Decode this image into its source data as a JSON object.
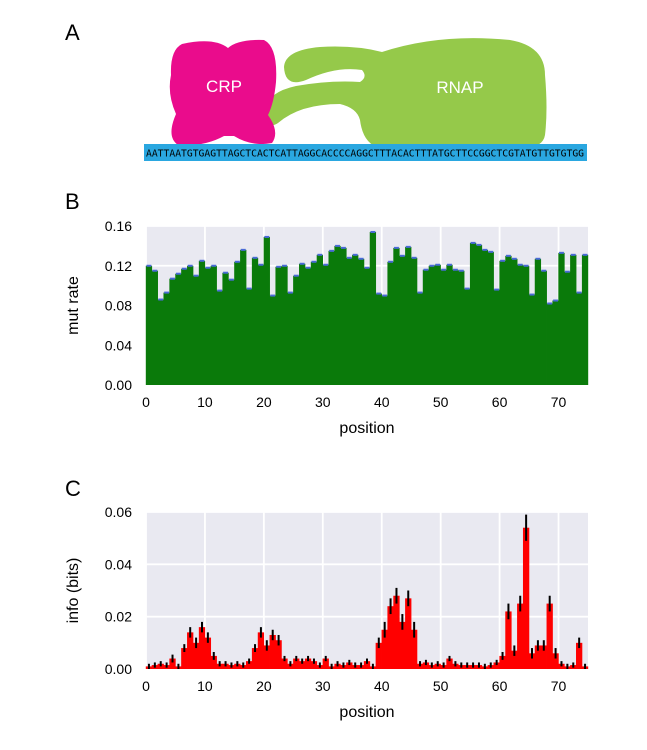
{
  "panels": {
    "a": "A",
    "b": "B",
    "c": "C"
  },
  "diagram": {
    "crp_label": "CRP",
    "rnap_label": "RNAP",
    "sequence": "AATTAATGTGAGTTAGCTCACTCATTAGGCACCCCAGGCTTTACACTTTATGCTTCCGGCTCGTATGTTGTGTGG",
    "colors": {
      "crp": "#ea0c8c",
      "rnap": "#95c94a",
      "dna": "#2aa7e0"
    }
  },
  "chart_data": [
    {
      "type": "bar",
      "id": "mut",
      "xlabel": "position",
      "ylabel": "mut rate",
      "xlim": [
        0,
        75
      ],
      "ylim": [
        0,
        0.16
      ],
      "xticks": [
        0,
        10,
        20,
        30,
        40,
        50,
        60,
        70
      ],
      "yticks": [
        "0.00",
        "0.04",
        "0.08",
        "0.12",
        "0.16"
      ],
      "grid": true,
      "bar_color": "#0a7a0a",
      "errbar_color": "#4a6ad8",
      "x": [
        0,
        1,
        2,
        3,
        4,
        5,
        6,
        7,
        8,
        9,
        10,
        11,
        12,
        13,
        14,
        15,
        16,
        17,
        18,
        19,
        20,
        21,
        22,
        23,
        24,
        25,
        26,
        27,
        28,
        29,
        30,
        31,
        32,
        33,
        34,
        35,
        36,
        37,
        38,
        39,
        40,
        41,
        42,
        43,
        44,
        45,
        46,
        47,
        48,
        49,
        50,
        51,
        52,
        53,
        54,
        55,
        56,
        57,
        58,
        59,
        60,
        61,
        62,
        63,
        64,
        65,
        66,
        67,
        68,
        69,
        70,
        71,
        72,
        73,
        74
      ],
      "values": [
        0.12,
        0.115,
        0.086,
        0.093,
        0.107,
        0.112,
        0.117,
        0.12,
        0.11,
        0.125,
        0.118,
        0.12,
        0.095,
        0.113,
        0.106,
        0.124,
        0.136,
        0.097,
        0.128,
        0.121,
        0.149,
        0.09,
        0.119,
        0.12,
        0.093,
        0.11,
        0.122,
        0.118,
        0.124,
        0.131,
        0.121,
        0.135,
        0.14,
        0.138,
        0.128,
        0.131,
        0.127,
        0.118,
        0.154,
        0.092,
        0.09,
        0.124,
        0.138,
        0.13,
        0.139,
        0.128,
        0.093,
        0.116,
        0.12,
        0.121,
        0.116,
        0.121,
        0.116,
        0.115,
        0.097,
        0.143,
        0.141,
        0.136,
        0.134,
        0.096,
        0.125,
        0.13,
        0.127,
        0.121,
        0.12,
        0.091,
        0.127,
        0.115,
        0.082,
        0.085,
        0.133,
        0.114,
        0.131,
        0.093,
        0.131
      ]
    },
    {
      "type": "bar",
      "id": "info",
      "xlabel": "position",
      "ylabel": "info (bits)",
      "xlim": [
        0,
        75
      ],
      "ylim": [
        0,
        0.06
      ],
      "xticks": [
        0,
        10,
        20,
        30,
        40,
        50,
        60,
        70
      ],
      "yticks": [
        "0.00",
        "0.02",
        "0.04",
        "0.06"
      ],
      "grid": true,
      "bar_color": "#ff0000",
      "errbar_color": "#000000",
      "x": [
        0,
        1,
        2,
        3,
        4,
        5,
        6,
        7,
        8,
        9,
        10,
        11,
        12,
        13,
        14,
        15,
        16,
        17,
        18,
        19,
        20,
        21,
        22,
        23,
        24,
        25,
        26,
        27,
        28,
        29,
        30,
        31,
        32,
        33,
        34,
        35,
        36,
        37,
        38,
        39,
        40,
        41,
        42,
        43,
        44,
        45,
        46,
        47,
        48,
        49,
        50,
        51,
        52,
        53,
        54,
        55,
        56,
        57,
        58,
        59,
        60,
        61,
        62,
        63,
        64,
        65,
        66,
        67,
        68,
        69,
        70,
        71,
        72,
        73,
        74
      ],
      "values": [
        0.001,
        0.0015,
        0.002,
        0.0015,
        0.004,
        0.001,
        0.008,
        0.014,
        0.01,
        0.016,
        0.012,
        0.005,
        0.002,
        0.002,
        0.0015,
        0.002,
        0.0015,
        0.003,
        0.008,
        0.014,
        0.009,
        0.013,
        0.011,
        0.004,
        0.002,
        0.004,
        0.003,
        0.004,
        0.003,
        0.0015,
        0.004,
        0.001,
        0.002,
        0.0015,
        0.0025,
        0.0015,
        0.0015,
        0.003,
        0.001,
        0.01,
        0.015,
        0.024,
        0.028,
        0.018,
        0.027,
        0.015,
        0.002,
        0.0025,
        0.0015,
        0.002,
        0.0015,
        0.004,
        0.002,
        0.0015,
        0.0015,
        0.0015,
        0.0015,
        0.001,
        0.0015,
        0.0025,
        0.005,
        0.022,
        0.007,
        0.025,
        0.054,
        0.006,
        0.009,
        0.009,
        0.025,
        0.006,
        0.002,
        0.001,
        0.0015,
        0.01,
        0.001
      ],
      "errors": [
        0.001,
        0.001,
        0.001,
        0.001,
        0.0015,
        0.001,
        0.0015,
        0.002,
        0.002,
        0.002,
        0.002,
        0.0015,
        0.001,
        0.001,
        0.001,
        0.001,
        0.001,
        0.001,
        0.0015,
        0.002,
        0.002,
        0.002,
        0.002,
        0.001,
        0.001,
        0.001,
        0.001,
        0.001,
        0.001,
        0.001,
        0.001,
        0.001,
        0.001,
        0.001,
        0.001,
        0.001,
        0.001,
        0.001,
        0.001,
        0.002,
        0.003,
        0.003,
        0.003,
        0.003,
        0.003,
        0.003,
        0.001,
        0.001,
        0.001,
        0.001,
        0.001,
        0.001,
        0.001,
        0.001,
        0.001,
        0.001,
        0.001,
        0.001,
        0.001,
        0.001,
        0.0015,
        0.003,
        0.002,
        0.003,
        0.005,
        0.002,
        0.002,
        0.002,
        0.003,
        0.002,
        0.001,
        0.001,
        0.001,
        0.002,
        0.001
      ]
    }
  ]
}
